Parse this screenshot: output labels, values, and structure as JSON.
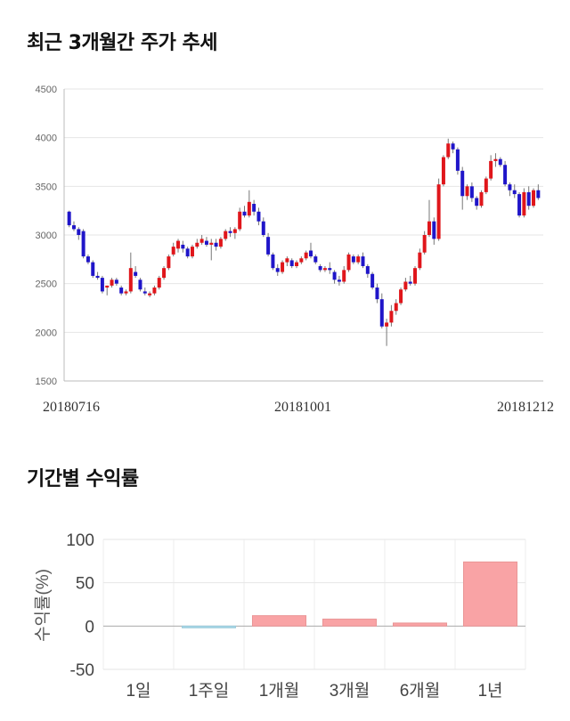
{
  "titles": {
    "price_trend": "최근 3개월간 주가 추세",
    "period_returns": "기간별 수익률"
  },
  "chart_data": [
    {
      "type": "candlestick",
      "title": "최근 3개월간 주가 추세",
      "ylim": [
        1500,
        4500
      ],
      "yticks": [
        4500,
        4000,
        3500,
        3000,
        2500,
        2000,
        1500
      ],
      "xtick_labels": [
        "20180716",
        "20181001",
        "20181212"
      ],
      "grid": true,
      "up_color": "#e0161b",
      "down_color": "#1f15c9",
      "candles": [
        [
          3240,
          3250,
          3080,
          3100
        ],
        [
          3100,
          3140,
          3040,
          3060
        ],
        [
          3060,
          3080,
          2950,
          3000
        ],
        [
          3040,
          3060,
          2760,
          2780
        ],
        [
          2780,
          2800,
          2700,
          2720
        ],
        [
          2720,
          2740,
          2560,
          2580
        ],
        [
          2580,
          2620,
          2540,
          2560
        ],
        [
          2560,
          2580,
          2400,
          2420
        ],
        [
          2460,
          2480,
          2380,
          2480
        ],
        [
          2480,
          2560,
          2460,
          2540
        ],
        [
          2540,
          2560,
          2480,
          2500
        ],
        [
          2460,
          2480,
          2380,
          2400
        ],
        [
          2400,
          2440,
          2380,
          2420
        ],
        [
          2420,
          2820,
          2400,
          2660
        ],
        [
          2620,
          2680,
          2560,
          2580
        ],
        [
          2540,
          2560,
          2420,
          2440
        ],
        [
          2420,
          2460,
          2380,
          2400
        ],
        [
          2380,
          2420,
          2360,
          2400
        ],
        [
          2400,
          2480,
          2380,
          2460
        ],
        [
          2460,
          2580,
          2440,
          2560
        ],
        [
          2560,
          2680,
          2540,
          2660
        ],
        [
          2660,
          2800,
          2640,
          2780
        ],
        [
          2800,
          2920,
          2780,
          2880
        ],
        [
          2860,
          2960,
          2820,
          2940
        ],
        [
          2900,
          2940,
          2820,
          2860
        ],
        [
          2860,
          2880,
          2760,
          2780
        ],
        [
          2780,
          2900,
          2760,
          2880
        ],
        [
          2880,
          2960,
          2860,
          2920
        ],
        [
          2920,
          3000,
          2900,
          2960
        ],
        [
          2940,
          2980,
          2880,
          2900
        ],
        [
          2900,
          2960,
          2740,
          2920
        ],
        [
          2920,
          2960,
          2840,
          2880
        ],
        [
          2880,
          2980,
          2860,
          2960
        ],
        [
          2960,
          3060,
          2940,
          3040
        ],
        [
          3040,
          3080,
          2980,
          3020
        ],
        [
          3020,
          3080,
          2960,
          3060
        ],
        [
          3060,
          3280,
          3040,
          3240
        ],
        [
          3240,
          3300,
          3180,
          3200
        ],
        [
          3200,
          3460,
          3180,
          3340
        ],
        [
          3320,
          3360,
          3200,
          3240
        ],
        [
          3240,
          3280,
          3100,
          3140
        ],
        [
          3140,
          3180,
          2980,
          3000
        ],
        [
          2980,
          3020,
          2780,
          2800
        ],
        [
          2800,
          2820,
          2640,
          2660
        ],
        [
          2660,
          2700,
          2580,
          2620
        ],
        [
          2620,
          2740,
          2600,
          2720
        ],
        [
          2720,
          2780,
          2680,
          2760
        ],
        [
          2740,
          2760,
          2660,
          2680
        ],
        [
          2680,
          2740,
          2660,
          2720
        ],
        [
          2720,
          2780,
          2700,
          2760
        ],
        [
          2760,
          2840,
          2740,
          2820
        ],
        [
          2840,
          2920,
          2760,
          2780
        ],
        [
          2780,
          2800,
          2700,
          2720
        ],
        [
          2680,
          2700,
          2620,
          2640
        ],
        [
          2640,
          2680,
          2620,
          2660
        ],
        [
          2660,
          2720,
          2600,
          2640
        ],
        [
          2620,
          2640,
          2500,
          2540
        ],
        [
          2540,
          2580,
          2480,
          2520
        ],
        [
          2520,
          2680,
          2500,
          2640
        ],
        [
          2640,
          2820,
          2620,
          2800
        ],
        [
          2780,
          2800,
          2700,
          2720
        ],
        [
          2720,
          2800,
          2700,
          2780
        ],
        [
          2780,
          2820,
          2660,
          2680
        ],
        [
          2680,
          2700,
          2560,
          2600
        ],
        [
          2600,
          2620,
          2440,
          2460
        ],
        [
          2460,
          2500,
          2300,
          2340
        ],
        [
          2340,
          2400,
          2040,
          2060
        ],
        [
          2060,
          2140,
          1860,
          2100
        ],
        [
          2100,
          2280,
          2060,
          2220
        ],
        [
          2220,
          2340,
          2180,
          2300
        ],
        [
          2300,
          2460,
          2280,
          2440
        ],
        [
          2440,
          2560,
          2420,
          2520
        ],
        [
          2520,
          2580,
          2480,
          2500
        ],
        [
          2500,
          2680,
          2480,
          2660
        ],
        [
          2660,
          2860,
          2640,
          2820
        ],
        [
          2820,
          3040,
          2800,
          3000
        ],
        [
          3000,
          3360,
          2980,
          3140
        ],
        [
          3140,
          3180,
          2900,
          2960
        ],
        [
          2960,
          3580,
          2940,
          3520
        ],
        [
          3520,
          3820,
          3500,
          3800
        ],
        [
          3800,
          3990,
          3780,
          3940
        ],
        [
          3940,
          3960,
          3840,
          3880
        ],
        [
          3880,
          3900,
          3620,
          3660
        ],
        [
          3660,
          3700,
          3260,
          3400
        ],
        [
          3400,
          3520,
          3360,
          3500
        ],
        [
          3500,
          3540,
          3340,
          3380
        ],
        [
          3380,
          3400,
          3260,
          3300
        ],
        [
          3300,
          3460,
          3280,
          3440
        ],
        [
          3440,
          3600,
          3420,
          3580
        ],
        [
          3580,
          3820,
          3560,
          3760
        ],
        [
          3760,
          3840,
          3700,
          3780
        ],
        [
          3780,
          3800,
          3700,
          3720
        ],
        [
          3720,
          3760,
          3500,
          3520
        ],
        [
          3520,
          3540,
          3400,
          3460
        ],
        [
          3460,
          3520,
          3380,
          3420
        ],
        [
          3420,
          3440,
          3180,
          3200
        ],
        [
          3200,
          3480,
          3180,
          3440
        ],
        [
          3440,
          3500,
          3260,
          3300
        ],
        [
          3300,
          3480,
          3280,
          3460
        ],
        [
          3460,
          3520,
          3360,
          3380
        ]
      ]
    },
    {
      "type": "bar",
      "title": "기간별 수익률",
      "ylabel": "수익률(%)",
      "ylim": [
        -50,
        100
      ],
      "yticks": [
        100,
        50,
        0,
        -50
      ],
      "categories": [
        "1일",
        "1주일",
        "1개월",
        "3개월",
        "6개월",
        "1년"
      ],
      "values": [
        0,
        -1.5,
        12,
        8,
        3.5,
        74
      ],
      "positive_color": "#f9a3a5",
      "negative_color": "#a8d8e8"
    }
  ]
}
